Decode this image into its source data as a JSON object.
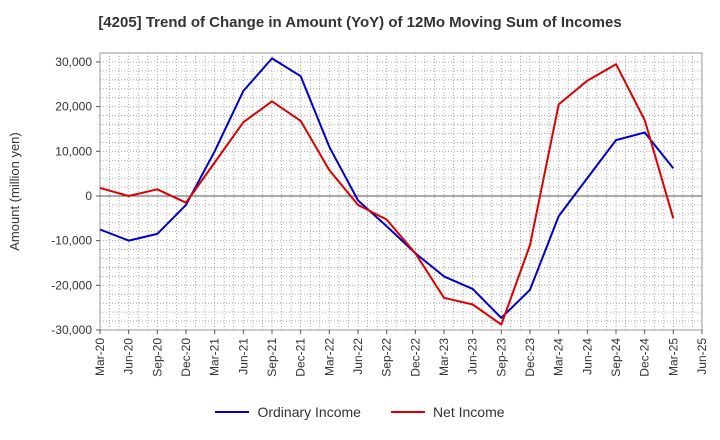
{
  "chart_data": {
    "type": "line",
    "title": "[4205]  Trend of Change in Amount (YoY) of 12Mo Moving Sum of Incomes",
    "xlabel": "",
    "ylabel": "Amount (million yen)",
    "ylim": [
      -30000,
      32000
    ],
    "yticks": [
      -30000,
      -20000,
      -10000,
      0,
      10000,
      20000,
      30000
    ],
    "ytick_labels": [
      "-30,000",
      "-20,000",
      "-10,000",
      "0",
      "10,000",
      "20,000",
      "30,000"
    ],
    "categories": [
      "Mar-20",
      "Jun-20",
      "Sep-20",
      "Dec-20",
      "Mar-21",
      "Jun-21",
      "Sep-21",
      "Dec-21",
      "Mar-22",
      "Jun-22",
      "Sep-22",
      "Dec-22",
      "Mar-23",
      "Jun-23",
      "Sep-23",
      "Dec-23",
      "Mar-24",
      "Jun-24",
      "Sep-24",
      "Dec-24",
      "Mar-25",
      "Jun-25"
    ],
    "grid": true,
    "legend_position": "bottom",
    "series": [
      {
        "name": "Ordinary Income",
        "color": "#0000cc",
        "values": [
          -7500,
          -10000,
          -8500,
          -2000,
          10000,
          23500,
          30800,
          26800,
          11000,
          -1000,
          -6800,
          -12800,
          -18000,
          -20800,
          -27300,
          -21000,
          -4500,
          4000,
          12500,
          14200,
          6200,
          null
        ]
      },
      {
        "name": "Net Income",
        "color": "#dd0000",
        "values": [
          1800,
          0,
          1500,
          -1500,
          7500,
          16500,
          21200,
          16800,
          5800,
          -2000,
          -5300,
          -12800,
          -22800,
          -24300,
          -28800,
          -11000,
          20500,
          25800,
          29500,
          17000,
          -5000,
          null
        ]
      }
    ]
  }
}
